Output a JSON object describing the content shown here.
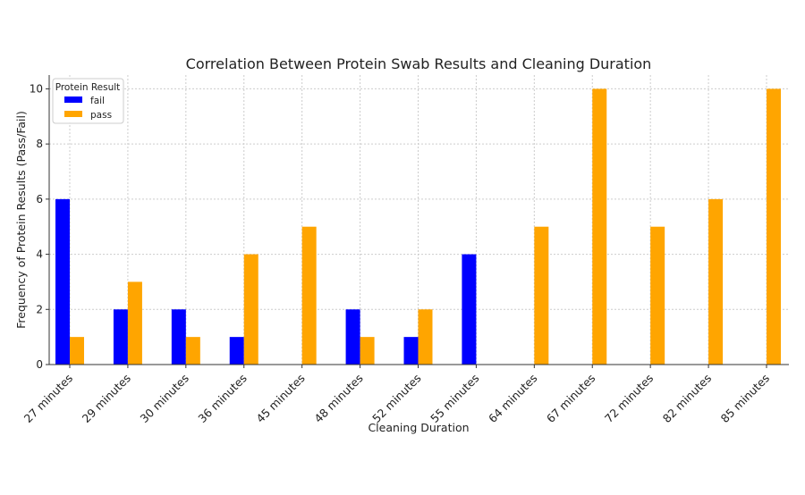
{
  "chart_data": {
    "type": "bar",
    "title": "Correlation Between Protein Swab Results and Cleaning Duration",
    "xlabel": "Cleaning Duration",
    "ylabel": "Frequency of Protein Results (Pass/Fail)",
    "categories": [
      "27 minutes",
      "29 minutes",
      "30 minutes",
      "36 minutes",
      "45 minutes",
      "48 minutes",
      "52 minutes",
      "55 minutes",
      "64 minutes",
      "67 minutes",
      "72 minutes",
      "82 minutes",
      "85 minutes"
    ],
    "series": [
      {
        "name": "fail",
        "color": "#0000ff",
        "values": [
          6,
          2,
          2,
          1,
          0,
          2,
          1,
          4,
          0,
          0,
          0,
          0,
          0
        ]
      },
      {
        "name": "pass",
        "color": "#ffa500",
        "values": [
          1,
          3,
          1,
          4,
          5,
          1,
          2,
          0,
          5,
          10,
          5,
          6,
          10
        ]
      }
    ],
    "ylim": [
      0,
      10.5
    ],
    "yticks": [
      0,
      2,
      4,
      6,
      8,
      10
    ],
    "grid": true,
    "legend": {
      "title": "Protein Result",
      "placement": "top-left"
    }
  }
}
